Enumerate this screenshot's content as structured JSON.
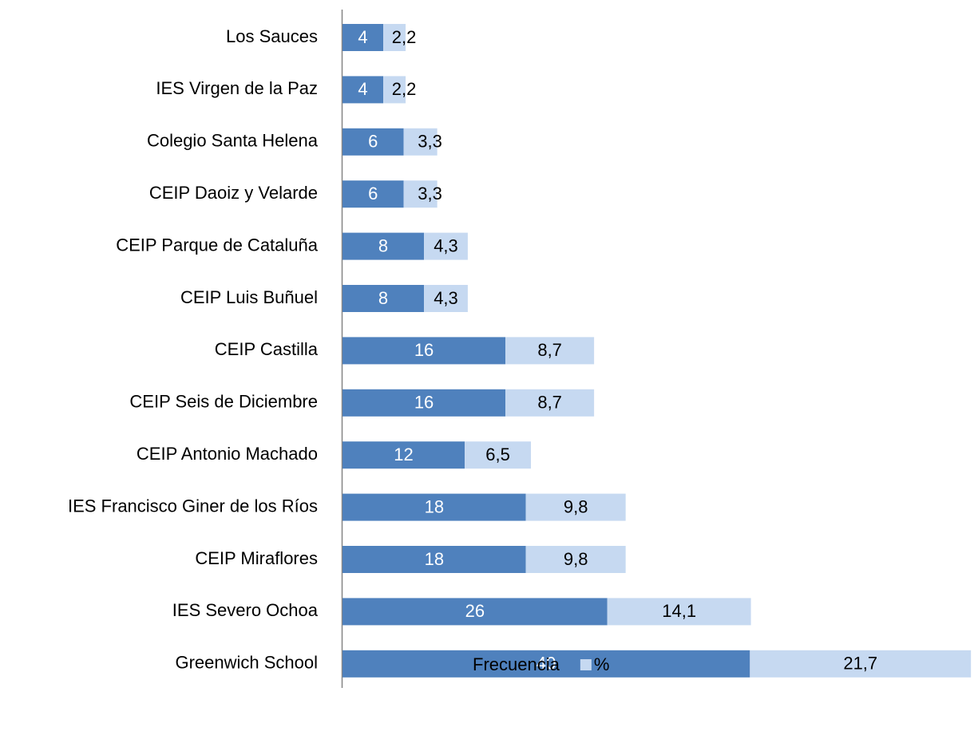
{
  "chart_data": {
    "type": "stacked-bar-horizontal",
    "categories": [
      "Los Sauces",
      "IES Virgen de la Paz",
      "Colegio Santa Helena",
      "CEIP Daoiz y Velarde",
      "CEIP Parque de Cataluña",
      "CEIP Luis Buñuel",
      "CEIP Castilla",
      "CEIP Seis de Diciembre",
      "CEIP Antonio Machado",
      "IES Francisco Giner de los Ríos",
      "CEIP Miraflores",
      "IES Severo Ochoa",
      "Greenwich School"
    ],
    "series": [
      {
        "name": "Frecuencia",
        "color": "#4f81bd",
        "values": [
          4,
          4,
          6,
          6,
          8,
          8,
          16,
          16,
          12,
          18,
          18,
          26,
          40
        ]
      },
      {
        "name": "%",
        "color": "#c6d9f1",
        "values": [
          2.2,
          2.2,
          3.3,
          3.3,
          4.3,
          4.3,
          8.7,
          8.7,
          6.5,
          9.8,
          9.8,
          14.1,
          21.7
        ],
        "value_labels": [
          "2,2",
          "2,2",
          "3,3",
          "3,3",
          "4,3",
          "4,3",
          "8,7",
          "8,7",
          "6,5",
          "9,8",
          "9,8",
          "14,1",
          "21,7"
        ]
      }
    ],
    "xlim": [
      0,
      62
    ],
    "legend": "bottom"
  }
}
